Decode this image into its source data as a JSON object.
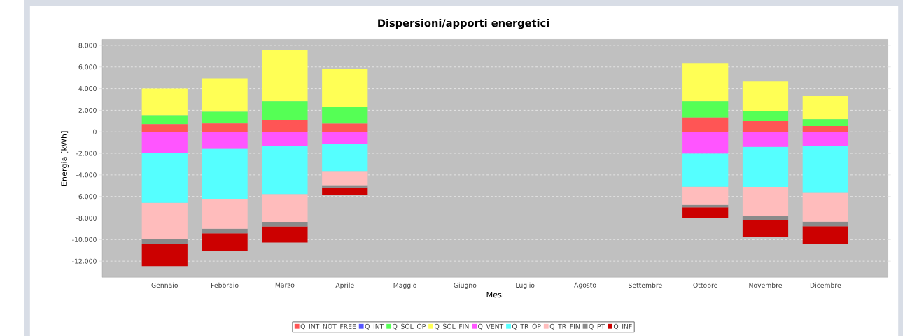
{
  "chart_data": {
    "type": "bar",
    "title": "Dispersioni/apporti energetici",
    "xlabel": "Mesi",
    "ylabel": "Energia [kWh]",
    "categories": [
      "Gennaio",
      "Febbraio",
      "Marzo",
      "Aprile",
      "Maggio",
      "Giugno",
      "Luglio",
      "Agosto",
      "Settembre",
      "Ottobre",
      "Novembre",
      "Dicembre"
    ],
    "stacked": true,
    "series": [
      {
        "name": "Q_INT_NOT_FREE",
        "color": "#ff5555",
        "values": [
          720,
          780,
          1120,
          760,
          null,
          null,
          null,
          null,
          null,
          1330,
          990,
          530
        ]
      },
      {
        "name": "Q_INT",
        "color": "#5555ff",
        "values": [
          0,
          0,
          0,
          0,
          null,
          null,
          null,
          null,
          null,
          0,
          0,
          0
        ]
      },
      {
        "name": "Q_SOL_OP",
        "color": "#55ff55",
        "values": [
          820,
          1090,
          1740,
          1530,
          null,
          null,
          null,
          null,
          null,
          1530,
          900,
          630
        ]
      },
      {
        "name": "Q_SOL_FIN",
        "color": "#ffff55",
        "values": [
          2460,
          3040,
          4680,
          3520,
          null,
          null,
          null,
          null,
          null,
          3500,
          2780,
          2170
        ]
      },
      {
        "name": "Q_VENT",
        "color": "#ff55ff",
        "values": [
          -2000,
          -1580,
          -1350,
          -1120,
          null,
          null,
          null,
          null,
          null,
          -2020,
          -1390,
          -1280
        ]
      },
      {
        "name": "Q_TR_OP",
        "color": "#55ffff",
        "values": [
          -4590,
          -4630,
          -4420,
          -2520,
          null,
          null,
          null,
          null,
          null,
          -3070,
          -3730,
          -4320
        ]
      },
      {
        "name": "Q_TR_FIN",
        "color": "#ffbcbc",
        "values": [
          -3370,
          -2780,
          -2590,
          -1310,
          null,
          null,
          null,
          null,
          null,
          -1690,
          -2690,
          -2740
        ]
      },
      {
        "name": "Q_PT",
        "color": "#8a8a8a",
        "values": [
          -460,
          -420,
          -420,
          -210,
          null,
          null,
          null,
          null,
          null,
          -230,
          -360,
          -420
        ]
      },
      {
        "name": "Q_INF",
        "color": "#cc0000",
        "values": [
          -2040,
          -1680,
          -1490,
          -690,
          null,
          null,
          null,
          null,
          null,
          -950,
          -1580,
          -1660
        ]
      }
    ],
    "ylim": [
      -13500,
      8550
    ],
    "yticks": [
      {
        "value": -12000,
        "label": "-12.000"
      },
      {
        "value": -10000,
        "label": "-10.000"
      },
      {
        "value": -8000,
        "label": "-8.000"
      },
      {
        "value": -6000,
        "label": "-6.000"
      },
      {
        "value": -4000,
        "label": "-4.000"
      },
      {
        "value": -2000,
        "label": "-2.000"
      },
      0,
      {
        "value": 2000,
        "label": "2.000"
      },
      {
        "value": 4000,
        "label": "4.000"
      },
      {
        "value": 6000,
        "label": "6.000"
      },
      {
        "value": 8000,
        "label": "8.000"
      }
    ],
    "grid": "y",
    "legend": "bottom"
  }
}
